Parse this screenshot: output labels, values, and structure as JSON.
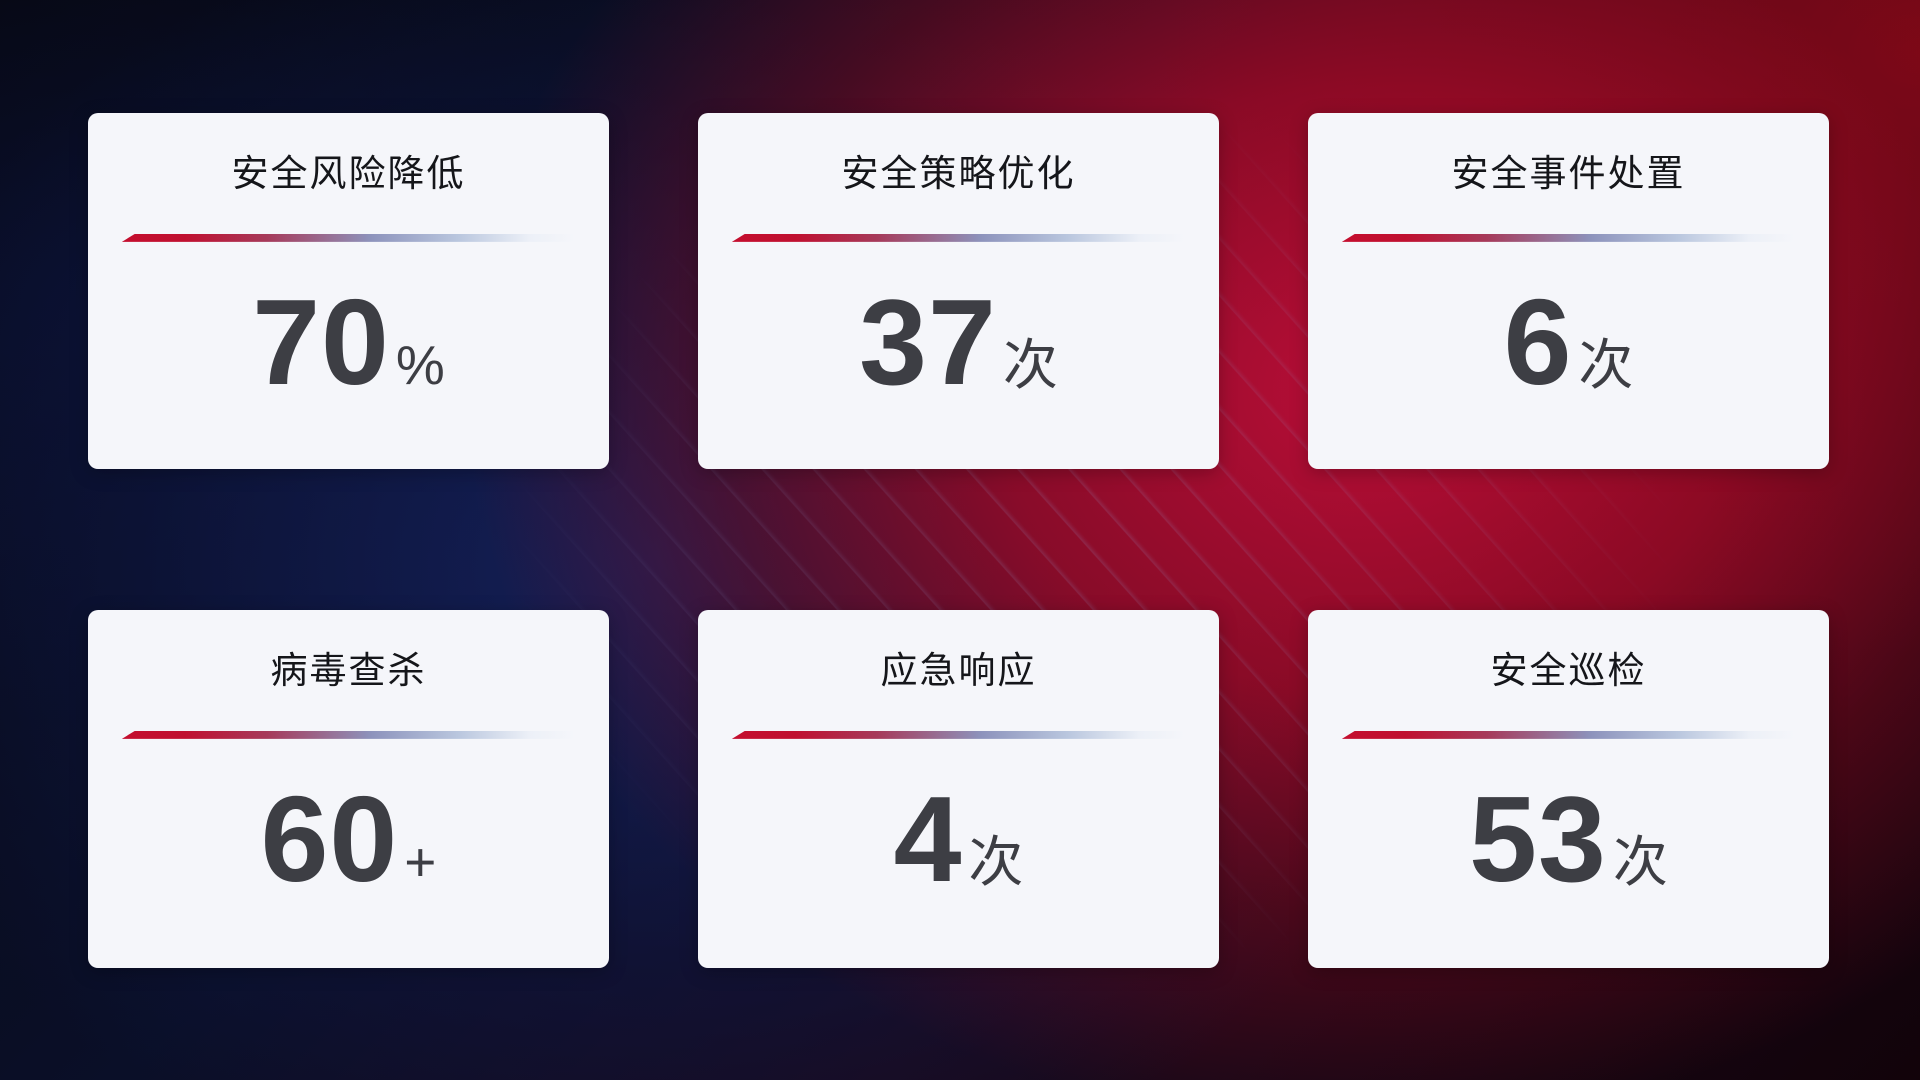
{
  "theme": {
    "card_bg": "#f5f6fa",
    "title_color": "#15161a",
    "number_color": "#3d3e44",
    "underline_red": "#c40e2e",
    "underline_blue_gray": "#8d93bc",
    "backdrop_navy": "#15215c",
    "backdrop_red": "#9e0a26"
  },
  "cards": [
    {
      "title": "安全风险降低",
      "value": "70",
      "unit": "%"
    },
    {
      "title": "安全策略优化",
      "value": "37",
      "unit": "次"
    },
    {
      "title": "安全事件处置",
      "value": "6",
      "unit": "次"
    },
    {
      "title": "病毒查杀",
      "value": "60",
      "unit": "+"
    },
    {
      "title": "应急响应",
      "value": "4",
      "unit": "次"
    },
    {
      "title": "安全巡检",
      "value": "53",
      "unit": "次"
    }
  ]
}
